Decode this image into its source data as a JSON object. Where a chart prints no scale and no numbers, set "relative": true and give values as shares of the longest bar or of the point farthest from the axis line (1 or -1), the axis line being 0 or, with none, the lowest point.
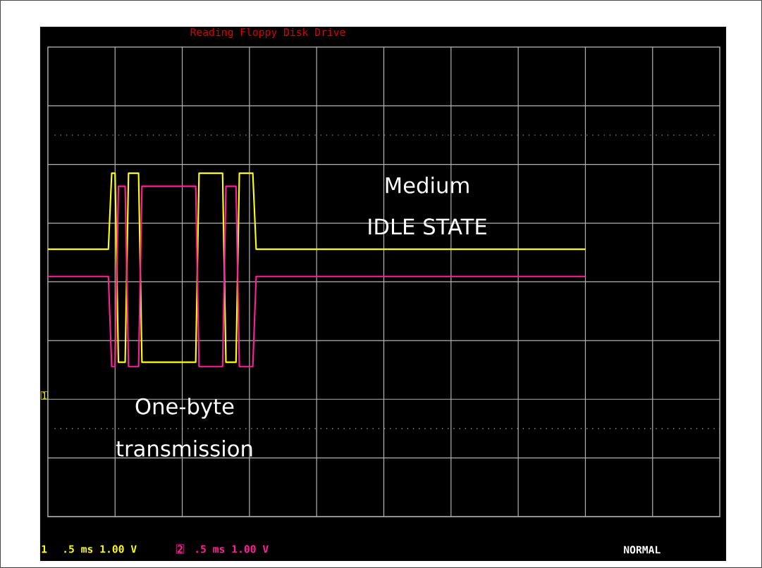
{
  "chart_data": {
    "type": "line",
    "title": "Reading Floppy Disk Drive",
    "relative": true,
    "grid": true,
    "legend": "bottom left",
    "categories": [
      null,
      null,
      null,
      null,
      null,
      null,
      null,
      null,
      null,
      null,
      null,
      null,
      null,
      null,
      null,
      null,
      null,
      null,
      null,
      null,
      null,
      null,
      null,
      null,
      null,
      null,
      null,
      null,
      null,
      null,
      null,
      null,
      null,
      null,
      null,
      null,
      null,
      null,
      null,
      null,
      null,
      null,
      null,
      null,
      null,
      null,
      null,
      null,
      null,
      null,
      null,
      null,
      null,
      null,
      null,
      null,
      null,
      null,
      null,
      null,
      null,
      null,
      null,
      null,
      null,
      null,
      null,
      null,
      null,
      null,
      null,
      null,
      null,
      null,
      null,
      null,
      null,
      null,
      null,
      null,
      null,
      null,
      null,
      null,
      null,
      null,
      null,
      null,
      null,
      null,
      null,
      null,
      null,
      null,
      null,
      null,
      null,
      null,
      null,
      null,
      null,
      null,
      null,
      null,
      null,
      null,
      null,
      null,
      null,
      null,
      null,
      null,
      null,
      null,
      null,
      null,
      null,
      null,
      null,
      null,
      null,
      null,
      null,
      null,
      null,
      null,
      null,
      null,
      null,
      null,
      null,
      null,
      null,
      null,
      null,
      null,
      null,
      null,
      null,
      null,
      null,
      null,
      null,
      null,
      null,
      null,
      null,
      null,
      null,
      null,
      null,
      null,
      null,
      null,
      null,
      null,
      null,
      null,
      null,
      null,
      null
    ],
    "series": [
      {
        "name": "1",
        "color": "#ffff00",
        "values": [
          0.3,
          0.3,
          0.3,
          0.3,
          0.3,
          0.3,
          0.3,
          0.3,
          0.3,
          0.3,
          0.3,
          0.3,
          0.3,
          0.3,
          0.3,
          0.3,
          0.3,
          0.3,
          0.3,
          1,
          1,
          -0.74,
          -0.74,
          -0.74,
          1,
          1,
          1,
          1,
          -0.74,
          -0.74,
          -0.74,
          -0.74,
          -0.74,
          -0.74,
          -0.74,
          -0.74,
          -0.74,
          -0.74,
          -0.74,
          -0.74,
          -0.74,
          -0.74,
          -0.74,
          -0.74,
          -0.74,
          1,
          1,
          1,
          1,
          1,
          1,
          1,
          1,
          -0.74,
          -0.74,
          -0.74,
          -0.74,
          1,
          1,
          1,
          1,
          1,
          0.3,
          0.3,
          0.3,
          0.3,
          0.3,
          0.3,
          0.3,
          0.3,
          0.3,
          0.3,
          0.3,
          0.3,
          0.3,
          0.3,
          0.3,
          0.3,
          0.3,
          0.3,
          0.3,
          0.3,
          0.3,
          0.3,
          0.3,
          0.3,
          0.3,
          0.3,
          0.3,
          0.3,
          0.3,
          0.3,
          0.3,
          0.3,
          0.3,
          0.3,
          0.3,
          0.3,
          0.3,
          0.3,
          0.3,
          0.3,
          0.3,
          0.3,
          0.3,
          0.3,
          0.3,
          0.3,
          0.3,
          0.3,
          0.3,
          0.3,
          0.3,
          0.3,
          0.3,
          0.3,
          0.3,
          0.3,
          0.3,
          0.3,
          0.3,
          0.3,
          0.3,
          0.3,
          0.3,
          0.3,
          0.3,
          0.3,
          0.3,
          0.3,
          0.3,
          0.3,
          0.3,
          0.3,
          0.3,
          0.3,
          0.3,
          0.3,
          0.3,
          0.3,
          0.3,
          0.3,
          0.3,
          0.3,
          0.3,
          0.3,
          0.3,
          0.3,
          0.3,
          0.3,
          0.3,
          0.3,
          0.3,
          0.3,
          0.3,
          0.3,
          0.3,
          0.3,
          0.3,
          0.3,
          0.3
        ]
      },
      {
        "name": "2",
        "color": "#ff1f9a",
        "values": [
          0.05,
          0.05,
          0.05,
          0.05,
          0.05,
          0.05,
          0.05,
          0.05,
          0.05,
          0.05,
          0.05,
          0.05,
          0.05,
          0.05,
          0.05,
          0.05,
          0.05,
          0.05,
          0.05,
          -0.78,
          -0.78,
          0.88,
          0.88,
          0.88,
          -0.78,
          -0.78,
          -0.78,
          -0.78,
          0.88,
          0.88,
          0.88,
          0.88,
          0.88,
          0.88,
          0.88,
          0.88,
          0.88,
          0.88,
          0.88,
          0.88,
          0.88,
          0.88,
          0.88,
          0.88,
          0.88,
          -0.78,
          -0.78,
          -0.78,
          -0.78,
          -0.78,
          -0.78,
          -0.78,
          -0.78,
          0.88,
          0.88,
          0.88,
          0.88,
          -0.78,
          -0.78,
          -0.78,
          -0.78,
          -0.78,
          0.05,
          0.05,
          0.05,
          0.05,
          0.05,
          0.05,
          0.05,
          0.05,
          0.05,
          0.05,
          0.05,
          0.05,
          0.05,
          0.05,
          0.05,
          0.05,
          0.05,
          0.05,
          0.05,
          0.05,
          0.05,
          0.05,
          0.05,
          0.05,
          0.05,
          0.05,
          0.05,
          0.05,
          0.05,
          0.05,
          0.05,
          0.05,
          0.05,
          0.05,
          0.05,
          0.05,
          0.05,
          0.05,
          0.05,
          0.05,
          0.05,
          0.05,
          0.05,
          0.05,
          0.05,
          0.05,
          0.05,
          0.05,
          0.05,
          0.05,
          0.05,
          0.05,
          0.05,
          0.05,
          0.05,
          0.05,
          0.05,
          0.05,
          0.05,
          0.05,
          0.05,
          0.05,
          0.05,
          0.05,
          0.05,
          0.05,
          0.05,
          0.05,
          0.05,
          0.05,
          0.05,
          0.05,
          0.05,
          0.05,
          0.05,
          0.05,
          0.05,
          0.05,
          0.05,
          0.05,
          0.05,
          0.05,
          0.05,
          0.05,
          0.05,
          0.05,
          0.05,
          0.05,
          0.05,
          0.05,
          0.05,
          0.05,
          0.05,
          0.05,
          0.05,
          0.05,
          0.05,
          0.05,
          0.05
        ]
      }
    ],
    "annotations": [
      "Medium",
      "IDLE STATE",
      "One-byte",
      "transmission",
      ".5 ms 1.00 V",
      ".5 ms 1.00 V",
      "NORMAL"
    ]
  }
}
